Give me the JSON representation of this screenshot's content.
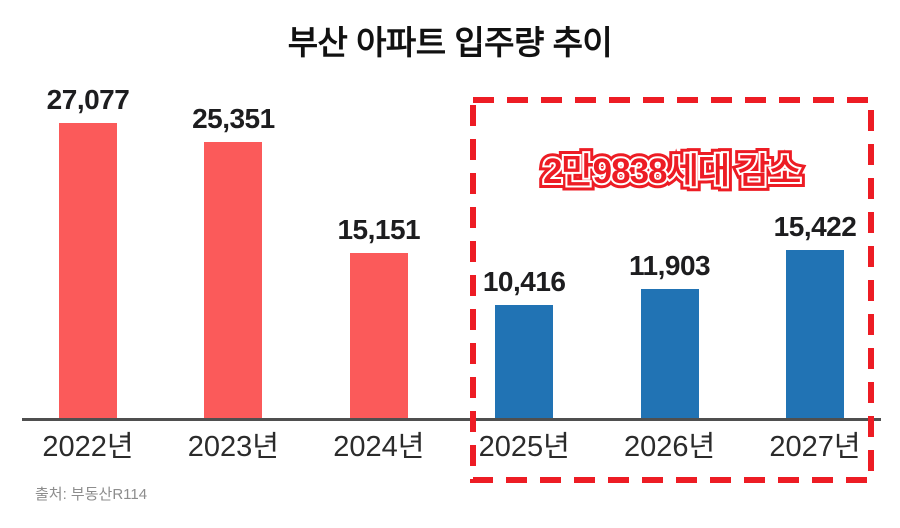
{
  "title": "부산 아파트 입주량 추이",
  "source": "출처: 부동산R114",
  "annotation": "2만9838세대 감소",
  "colors": {
    "past_bars": "#FB5A5A",
    "future_bars": "#2173B4",
    "highlight_red": "#ED1C24",
    "axis": "#4F4F4F",
    "label_text": "#1D1D1F",
    "source_text": "#8D8D8D"
  },
  "chart_data": {
    "type": "bar",
    "title": "부산 아파트 입주량 추이",
    "categories": [
      "2022년",
      "2023년",
      "2024년",
      "2025년",
      "2026년",
      "2027년"
    ],
    "values": [
      27077,
      25351,
      15151,
      10416,
      11903,
      15422
    ],
    "labels": [
      "27,077",
      "25,351",
      "15,151",
      "10,416",
      "11,903",
      "15,422"
    ],
    "bar_colors": [
      "#FB5A5A",
      "#FB5A5A",
      "#FB5A5A",
      "#2173B4",
      "#2173B4",
      "#2173B4"
    ],
    "ylim": [
      0,
      30000
    ],
    "xlabel": "",
    "ylabel": "",
    "grid": false,
    "legend": false,
    "annotation": "2만9838세대 감소",
    "highlight_box": {
      "categories": [
        "2025년",
        "2026년",
        "2027년"
      ],
      "style": "red-dashed-border",
      "label": "2만9838세대 감소"
    },
    "source": "출처: 부동산R114"
  }
}
